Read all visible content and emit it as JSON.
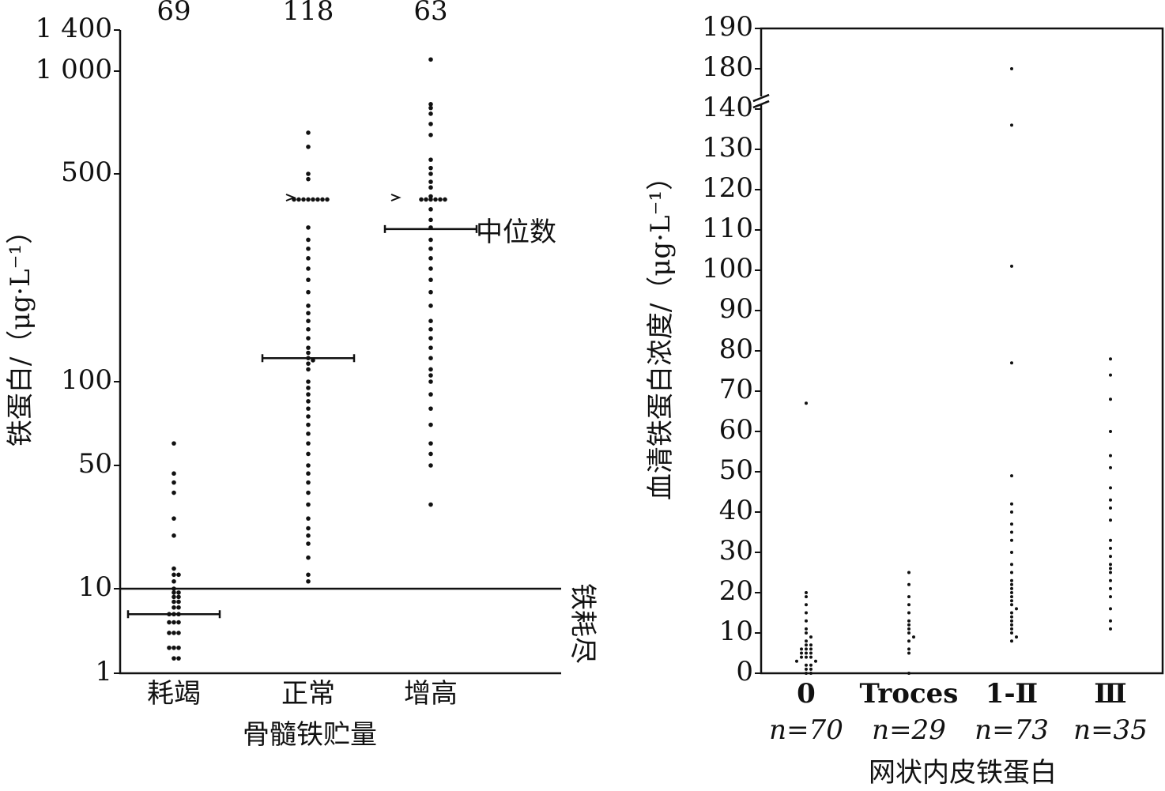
{
  "chart_data": [
    {
      "type": "dot",
      "x_label": "骨髓铁贮量",
      "y_label": "铁蛋白/（μg·L⁻¹）",
      "categories": [
        "耗竭",
        "正常",
        "增高"
      ],
      "group_sizes": [
        69,
        118,
        63
      ],
      "groups": [
        [
          60,
          45,
          40,
          35,
          25,
          20,
          13,
          12,
          12,
          11,
          10,
          9,
          9,
          8,
          8,
          7,
          7,
          6,
          6,
          5,
          5,
          5,
          4,
          4,
          4,
          3,
          3,
          3,
          2,
          2,
          2,
          1.5,
          1.5
        ],
        [
          660,
          600,
          500,
          480,
          410,
          410,
          410,
          410,
          410,
          410,
          410,
          410,
          330,
          300,
          280,
          260,
          240,
          220,
          200,
          180,
          170,
          160,
          150,
          140,
          130,
          125,
          120,
          118,
          115,
          110,
          100,
          95,
          90,
          85,
          80,
          75,
          70,
          65,
          60,
          55,
          50,
          45,
          40,
          35,
          30,
          25,
          22,
          20,
          18,
          15,
          12,
          11
        ],
        [
          1100,
          800,
          780,
          750,
          700,
          650,
          550,
          520,
          500,
          470,
          450,
          420,
          410,
          410,
          410,
          410,
          410,
          410,
          380,
          350,
          330,
          300,
          280,
          260,
          240,
          220,
          200,
          180,
          160,
          150,
          140,
          130,
          120,
          110,
          105,
          100,
          90,
          80,
          70,
          60,
          55,
          50,
          30
        ]
      ],
      "medians": [
        5,
        120,
        326
      ],
      "median_label": "中位数",
      "threshold": {
        "value": 10,
        "label": "铁耗尽"
      },
      "color": "#111111",
      "ylim": [
        1,
        1400
      ],
      "yticks": [
        1,
        10,
        50,
        100,
        500,
        {
          "value": 1000,
          "label": "1 000"
        },
        {
          "value": 1400,
          "label": "1 400"
        }
      ]
    },
    {
      "type": "dot",
      "x_label": "网状内皮铁蛋白",
      "y_label": "血清铁蛋白浓度/（μg·L⁻¹）",
      "categories": [
        "0",
        "Troces",
        "1-Ⅱ",
        "Ⅲ"
      ],
      "sample_sizes": [
        "n=70",
        "n=29",
        "n=73",
        "n=35"
      ],
      "groups": [
        [
          67,
          20,
          19,
          17,
          15,
          13,
          11,
          10,
          9,
          8,
          7,
          7,
          6,
          6,
          6,
          5,
          5,
          5,
          4,
          4,
          4,
          3,
          3,
          2,
          2,
          1,
          1,
          0,
          0
        ],
        [
          25,
          22,
          19,
          17,
          15,
          13,
          12,
          11,
          10,
          9,
          8,
          6,
          5,
          0
        ],
        [
          180,
          136,
          101,
          77,
          49,
          42,
          40,
          37,
          35,
          33,
          30,
          27,
          25,
          23,
          22,
          21,
          20,
          19,
          18,
          17,
          16,
          15,
          14,
          13,
          12,
          11,
          10,
          9,
          8
        ],
        [
          78,
          74,
          68,
          60,
          54,
          51,
          46,
          43,
          41,
          38,
          33,
          31,
          29,
          27,
          26,
          25,
          23,
          21,
          19,
          16,
          13,
          11
        ]
      ],
      "color": "#111111",
      "ylim": [
        0,
        190
      ],
      "ybreak": [
        140,
        180
      ],
      "yticks": [
        0,
        10,
        20,
        30,
        40,
        50,
        60,
        70,
        80,
        90,
        100,
        110,
        120,
        130,
        140,
        180,
        190
      ]
    }
  ]
}
